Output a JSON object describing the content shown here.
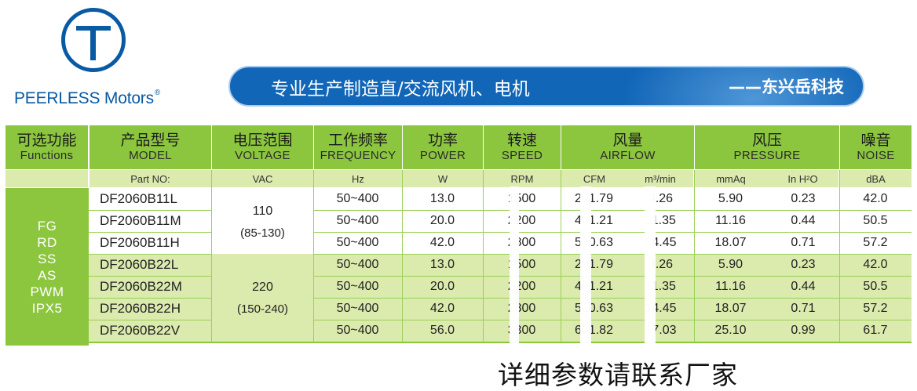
{
  "logo": {
    "brand": "PEERLESS Motors",
    "reg_mark": "®",
    "color": "#0a5aa3",
    "icon": "letter-t-circle-icon"
  },
  "banner": {
    "slogan": "专业生产制造直/交流风机、电机",
    "company": "——东兴岳科技",
    "color": "#1166b8"
  },
  "table": {
    "header_color": "#8cc63f",
    "subheader_color": "#dbeaad",
    "columns": [
      {
        "zh": "可选功能",
        "en": "Functions",
        "sub": ""
      },
      {
        "zh": "产品型号",
        "en": "MODEL",
        "sub": "Part NO:"
      },
      {
        "zh": "电压范围",
        "en": "VOLTAGE",
        "sub": "VAC"
      },
      {
        "zh": "工作频率",
        "en": "FREQUENCY",
        "sub": "Hz"
      },
      {
        "zh": "功率",
        "en": "POWER",
        "sub": "W"
      },
      {
        "zh": "转速",
        "en": "SPEED",
        "sub": "RPM"
      },
      {
        "zh": "风量",
        "en": "AIRFLOW",
        "sub_a": "CFM",
        "sub_b": "m³/min"
      },
      {
        "zh": "风压",
        "en": "PRESSURE",
        "sub_a": "mmAq",
        "sub_b": "In H²O"
      },
      {
        "zh": "噪音",
        "en": "NOISE",
        "sub": "dBA"
      }
    ],
    "functions": [
      "FG",
      "RD",
      "SS",
      "AS",
      "PWM",
      "IPX5"
    ],
    "voltage_groups": [
      {
        "voltage": "110",
        "range": "(85-130)"
      },
      {
        "voltage": "220",
        "range": "(150-240)"
      }
    ],
    "rows": [
      {
        "model": "DF2060B11L",
        "freq": "50~400",
        "power": "13.0",
        "rpm": "1500",
        "cfm": "291.79",
        "m3": "8.26",
        "mmaq": "5.90",
        "inh2o": "0.23",
        "noise": "42.0"
      },
      {
        "model": "DF2060B11M",
        "freq": "50~400",
        "power": "20.0",
        "rpm": "2200",
        "cfm": "401.21",
        "m3": "11.35",
        "mmaq": "11.16",
        "inh2o": "0.44",
        "noise": "50.5"
      },
      {
        "model": "DF2060B11H",
        "freq": "50~400",
        "power": "42.0",
        "rpm": "2800",
        "cfm": "510.63",
        "m3": "14.45",
        "mmaq": "18.07",
        "inh2o": "0.71",
        "noise": "57.2"
      },
      {
        "model": "DF2060B22L",
        "freq": "50~400",
        "power": "13.0",
        "rpm": "1500",
        "cfm": "291.79",
        "m3": "8.26",
        "mmaq": "5.90",
        "inh2o": "0.23",
        "noise": "42.0"
      },
      {
        "model": "DF2060B22M",
        "freq": "50~400",
        "power": "20.0",
        "rpm": "2200",
        "cfm": "401.21",
        "m3": "11.35",
        "mmaq": "11.16",
        "inh2o": "0.44",
        "noise": "50.5"
      },
      {
        "model": "DF2060B22H",
        "freq": "50~400",
        "power": "42.0",
        "rpm": "2800",
        "cfm": "510.63",
        "m3": "14.45",
        "mmaq": "18.07",
        "inh2o": "0.71",
        "noise": "57.2"
      },
      {
        "model": "DF2060B22V",
        "freq": "50~400",
        "power": "56.0",
        "rpm": "3300",
        "cfm": "601.82",
        "m3": "17.03",
        "mmaq": "25.10",
        "inh2o": "0.99",
        "noise": "61.7"
      }
    ]
  },
  "footer": {
    "text": "详细参数请联系厂家"
  }
}
